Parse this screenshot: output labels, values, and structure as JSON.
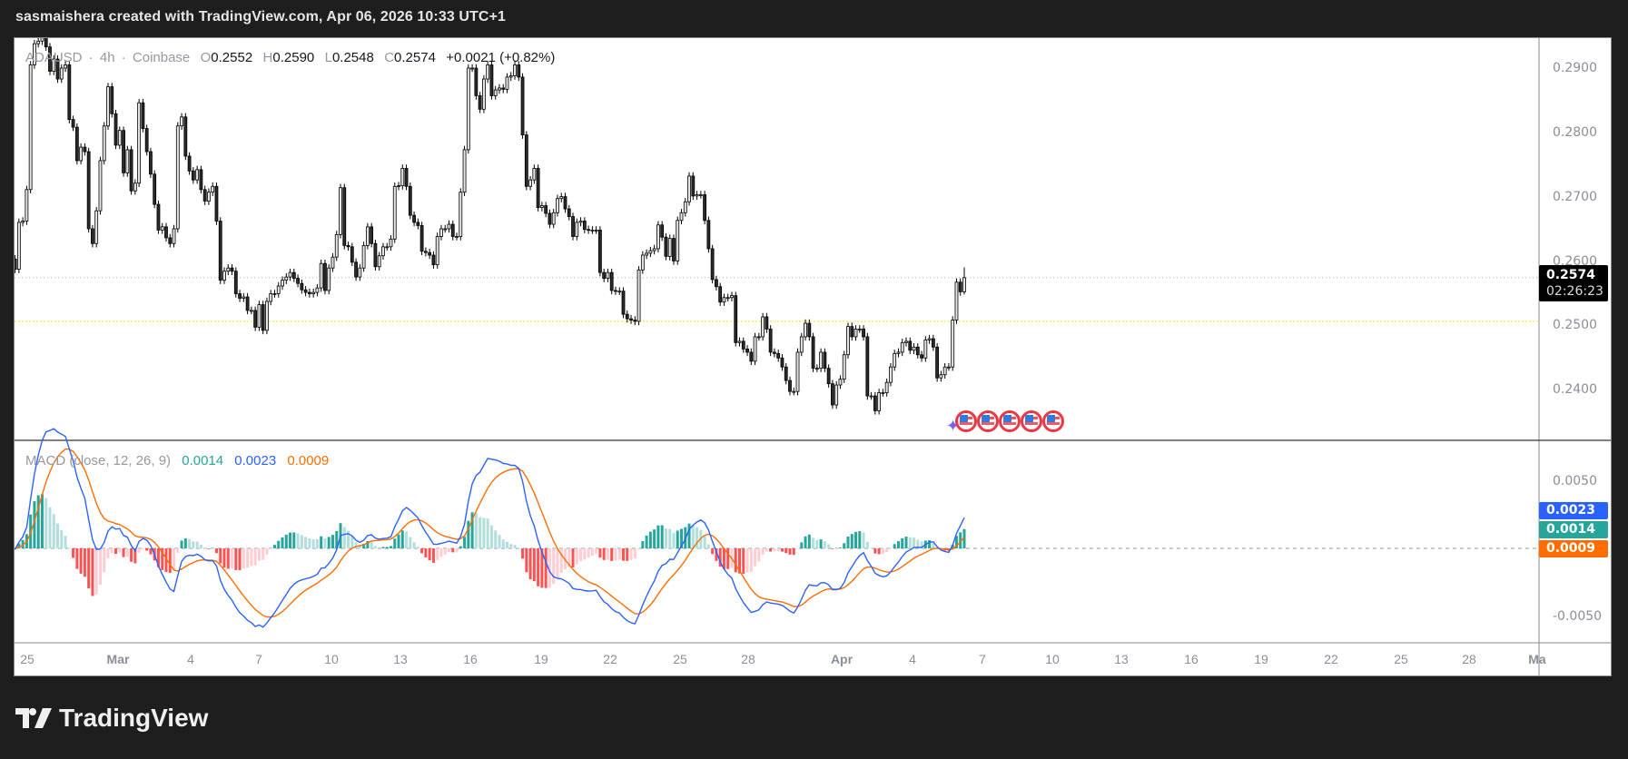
{
  "header": {
    "attribution": "sasmaishera created with TradingView.com, Apr 06, 2026 10:33 UTC+1"
  },
  "legend": {
    "symbol": "ADAUSD",
    "sep1": "·",
    "interval": "4h",
    "sep2": "·",
    "exchange": "Coinbase",
    "o_label": "O",
    "o": "0.2552",
    "h_label": "H",
    "h": "0.2590",
    "l_label": "L",
    "l": "0.2548",
    "c_label": "C",
    "c": "0.2574",
    "change": "+0.0021 (+0.82%)"
  },
  "price_axis": {
    "labels": [
      "0.2900",
      "0.2800",
      "0.2700",
      "0.2600",
      "0.2500",
      "0.2400"
    ],
    "current_price": "0.2574",
    "countdown": "02:26:23"
  },
  "macd": {
    "title": "MACD (close, 12, 26, 9)",
    "histogram": "0.0014",
    "macd": "0.0023",
    "signal": "0.0009",
    "axis_labels": [
      "0.0050",
      "-0.0050"
    ],
    "colors": {
      "macd": "#2962ff",
      "signal": "#ff6d00",
      "hist_up_strong": "#26a69a",
      "hist_up_weak": "#b2dfdb",
      "hist_down_strong": "#ff5252",
      "hist_down_weak": "#ffcdd2"
    }
  },
  "time_axis": {
    "labels": [
      "25",
      "Mar",
      "4",
      "7",
      "10",
      "13",
      "16",
      "19",
      "22",
      "25",
      "28",
      "Apr",
      "4",
      "7",
      "10",
      "13",
      "16",
      "19",
      "22",
      "25",
      "28",
      "Ma"
    ]
  },
  "horizontal_line": {
    "price": 0.2506,
    "color": "#f5e31b"
  },
  "events": {
    "icon": "us-flag-icon",
    "count": 5
  },
  "branding": {
    "logo_text": "TradingView"
  },
  "chart_data": {
    "type": "candlestick",
    "symbol": "ADAUSD",
    "interval": "4h",
    "ylim": [
      0.2335,
      0.2955
    ],
    "last_candle": {
      "open": 0.2552,
      "high": 0.259,
      "low": 0.2548,
      "close": 0.2574
    },
    "close": [
      0.2598,
      0.2603,
      0.2587,
      0.266,
      0.2662,
      0.2711,
      0.2905,
      0.2938,
      0.2942,
      0.2947,
      0.2933,
      0.2895,
      0.2914,
      0.2883,
      0.29,
      0.2905,
      0.282,
      0.2808,
      0.2756,
      0.2777,
      0.277,
      0.265,
      0.2627,
      0.2678,
      0.2756,
      0.281,
      0.2871,
      0.2829,
      0.278,
      0.2803,
      0.2737,
      0.2773,
      0.2709,
      0.2721,
      0.2846,
      0.2806,
      0.277,
      0.2735,
      0.2688,
      0.2648,
      0.2653,
      0.2636,
      0.2627,
      0.265,
      0.281,
      0.2824,
      0.2763,
      0.274,
      0.2726,
      0.2742,
      0.2711,
      0.2693,
      0.2707,
      0.2716,
      0.2662,
      0.257,
      0.2584,
      0.2589,
      0.2584,
      0.2549,
      0.2542,
      0.2544,
      0.2523,
      0.2523,
      0.2497,
      0.2532,
      0.2492,
      0.2537,
      0.2549,
      0.2549,
      0.2561,
      0.257,
      0.2575,
      0.2582,
      0.2573,
      0.2565,
      0.2555,
      0.2551,
      0.2549,
      0.2551,
      0.2558,
      0.2596,
      0.2554,
      0.2589,
      0.2606,
      0.2641,
      0.2714,
      0.2624,
      0.2622,
      0.2598,
      0.2575,
      0.2589,
      0.2624,
      0.2653,
      0.2627,
      0.2591,
      0.2608,
      0.2622,
      0.2622,
      0.2634,
      0.2716,
      0.2717,
      0.2744,
      0.2716,
      0.2671,
      0.266,
      0.2655,
      0.2615,
      0.2613,
      0.2609,
      0.2594,
      0.2638,
      0.265,
      0.265,
      0.2657,
      0.2638,
      0.2638,
      0.2707,
      0.2773,
      0.29,
      0.29,
      0.2857,
      0.2836,
      0.2883,
      0.2905,
      0.2857,
      0.2866,
      0.2869,
      0.2867,
      0.2886,
      0.2888,
      0.2905,
      0.2886,
      0.2796,
      0.2716,
      0.2726,
      0.2744,
      0.2683,
      0.2686,
      0.2674,
      0.2657,
      0.2675,
      0.2697,
      0.27,
      0.2681,
      0.2669,
      0.2638,
      0.266,
      0.2662,
      0.2649,
      0.2648,
      0.2648,
      0.2648,
      0.2582,
      0.2573,
      0.2582,
      0.2554,
      0.2553,
      0.2553,
      0.2517,
      0.251,
      0.2508,
      0.2506,
      0.2586,
      0.2609,
      0.2612,
      0.2616,
      0.2619,
      0.2656,
      0.2637,
      0.2607,
      0.2635,
      0.26,
      0.2663,
      0.2675,
      0.2692,
      0.2732,
      0.2701,
      0.2703,
      0.2703,
      0.2663,
      0.2619,
      0.2571,
      0.256,
      0.2536,
      0.2543,
      0.2543,
      0.2546,
      0.2473,
      0.2475,
      0.2463,
      0.2458,
      0.2444,
      0.2482,
      0.2482,
      0.2513,
      0.2494,
      0.2458,
      0.2456,
      0.2449,
      0.2435,
      0.2414,
      0.2397,
      0.2397,
      0.2458,
      0.2482,
      0.2503,
      0.2482,
      0.2433,
      0.2433,
      0.2458,
      0.2433,
      0.2409,
      0.2376,
      0.2407,
      0.2416,
      0.2454,
      0.2498,
      0.2482,
      0.2494,
      0.2494,
      0.2482,
      0.239,
      0.239,
      0.2367,
      0.2395,
      0.2395,
      0.2411,
      0.2435,
      0.2456,
      0.2458,
      0.2473,
      0.2475,
      0.2461,
      0.2466,
      0.2454,
      0.2449,
      0.2477,
      0.2479,
      0.2466,
      0.2418,
      0.2423,
      0.2435,
      0.2435,
      0.2508,
      0.2567,
      0.2552,
      0.2574
    ]
  }
}
